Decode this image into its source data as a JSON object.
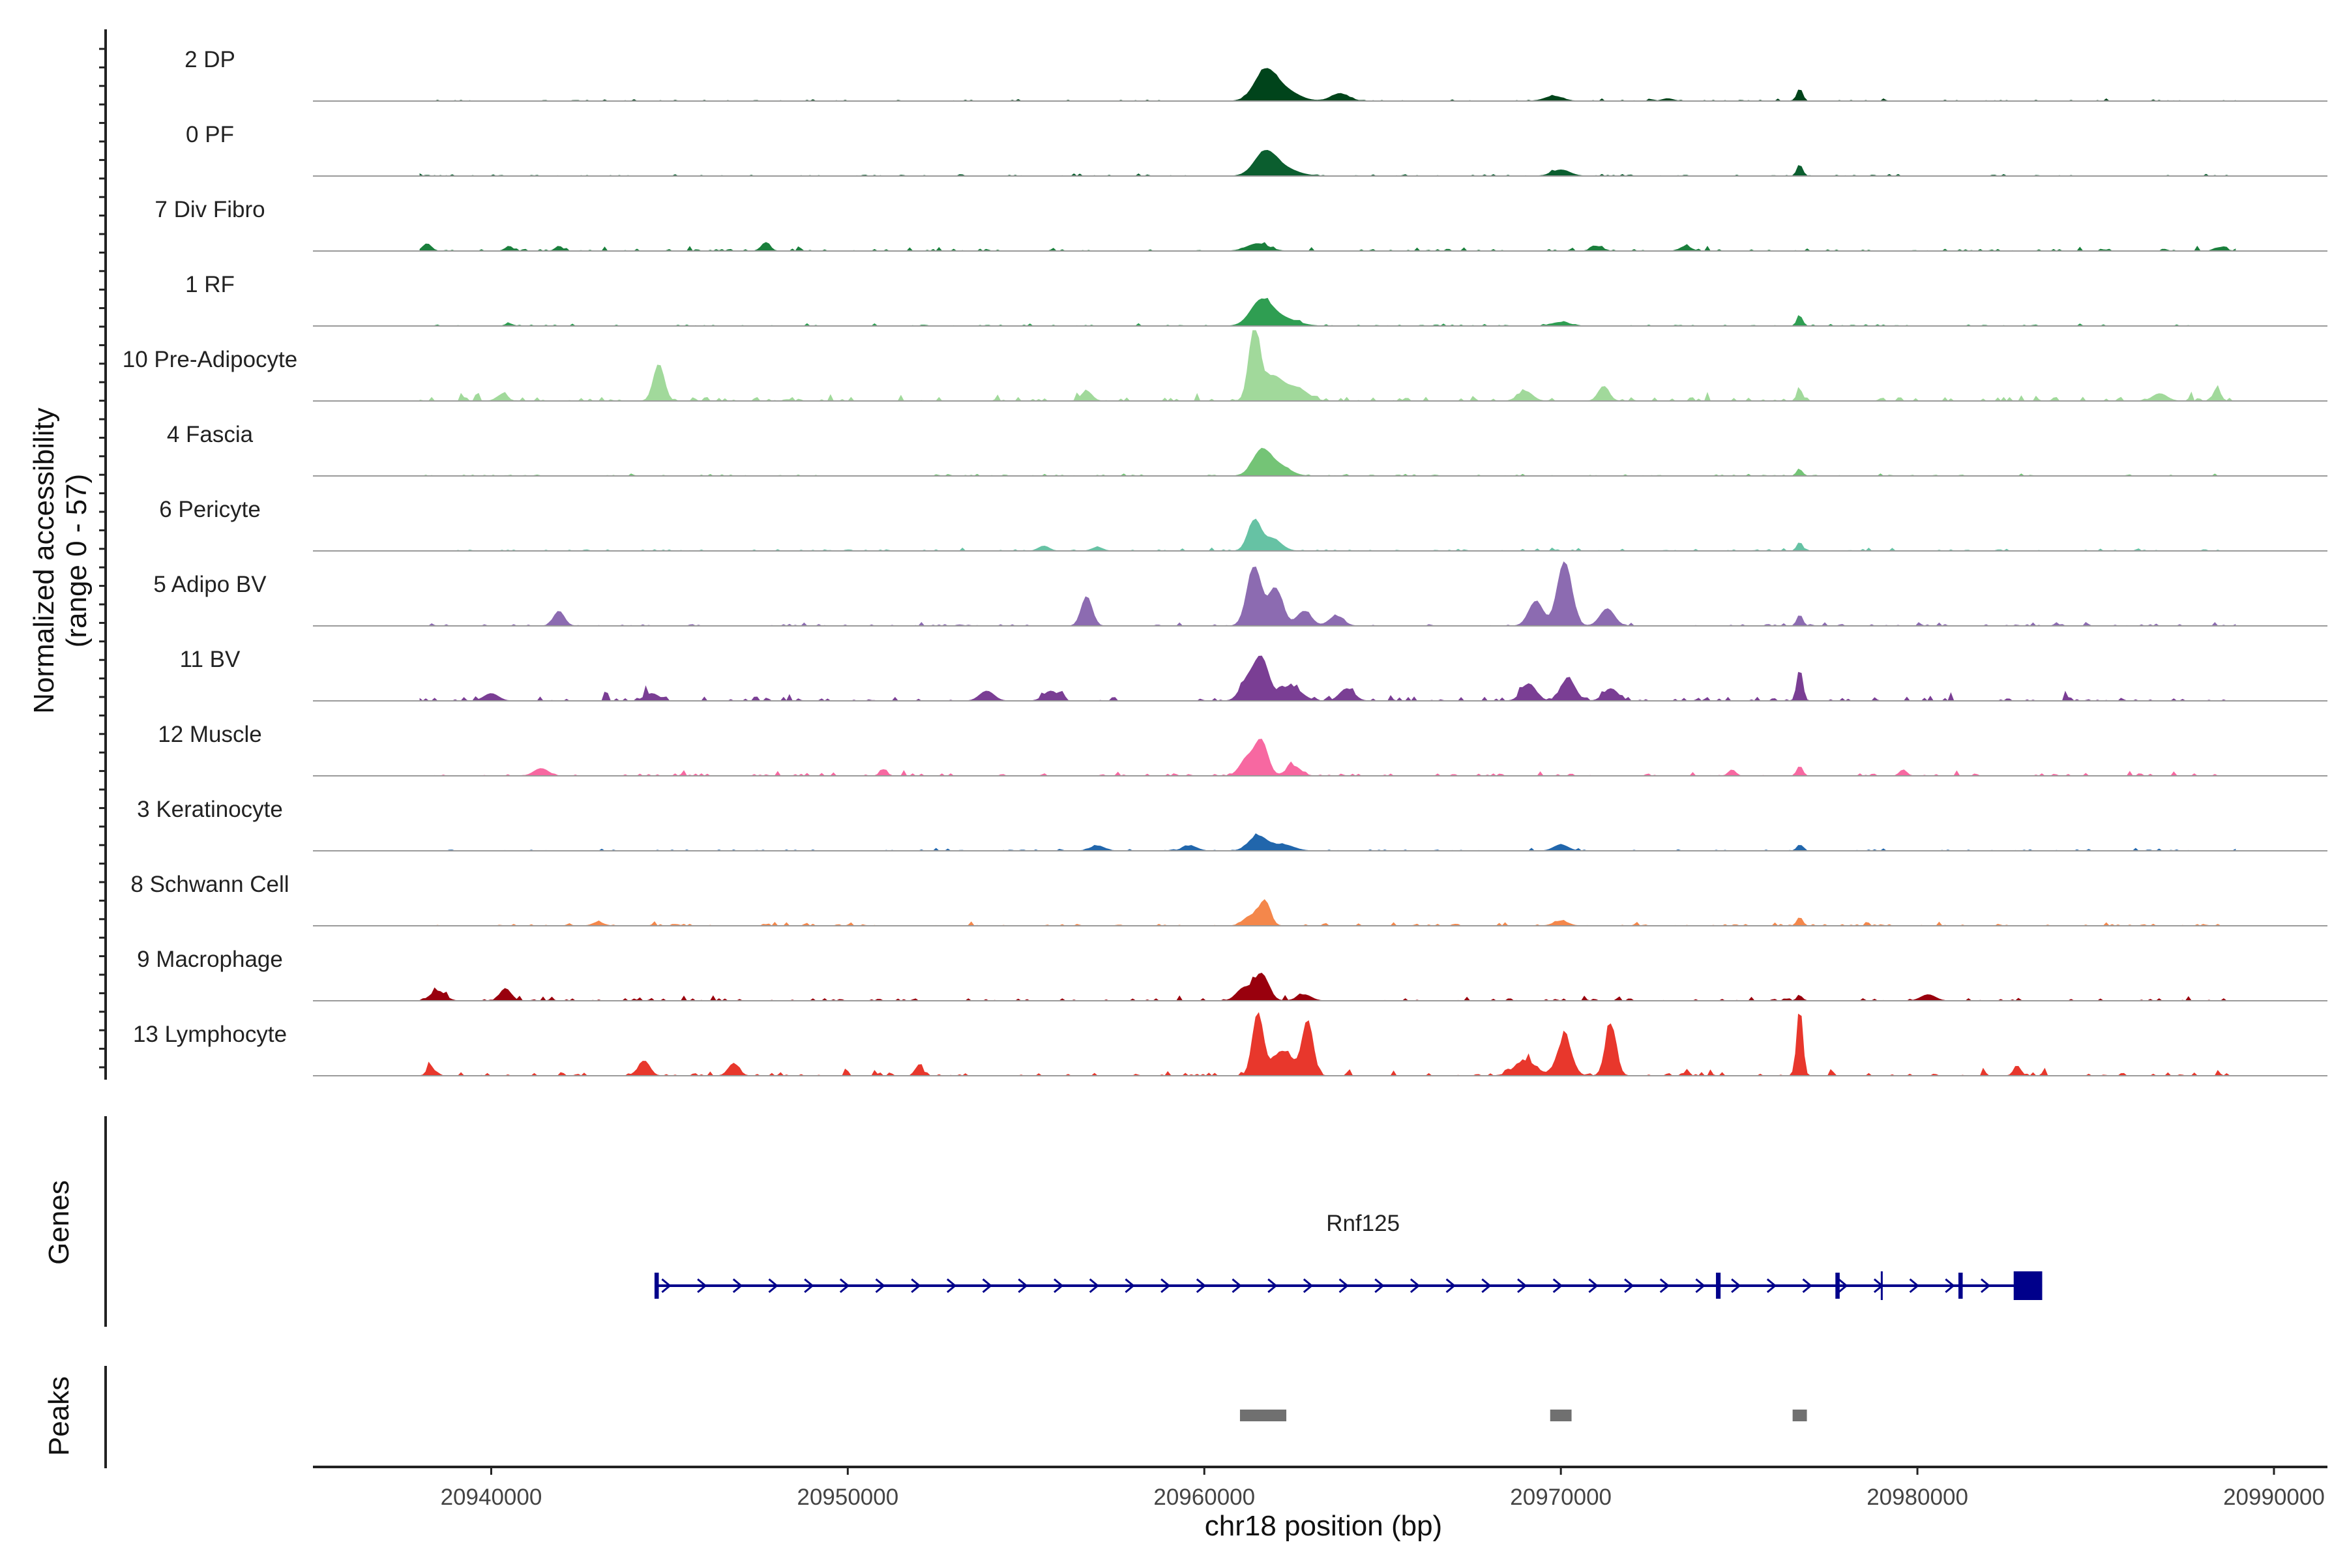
{
  "chart_data": {
    "type": "area",
    "title": "",
    "chromosome": "chr18",
    "xlabel": "chr18 position (bp)",
    "ylabel_line1": "Normalized accessibility",
    "ylabel_line2": "(range 0 - 57)",
    "ylim": [
      0,
      57
    ],
    "xlim": [
      20935000,
      20991500
    ],
    "x_ticks": [
      20940000,
      20950000,
      20960000,
      20970000,
      20980000,
      20990000
    ],
    "x_tick_labels": [
      "20940000",
      "20950000",
      "20960000",
      "20970000",
      "20980000",
      "20990000"
    ],
    "panel_labels": {
      "genes": "Genes",
      "peaks": "Peaks"
    },
    "tracks": [
      {
        "name": "2 DP",
        "color": "#00441b",
        "noise": 0.8,
        "peaks": [
          [
            20961700,
            22,
            300
          ],
          [
            20962200,
            9,
            400
          ],
          [
            20963800,
            6,
            250
          ],
          [
            20969800,
            4,
            250
          ],
          [
            20976700,
            10,
            80
          ],
          [
            20973000,
            2,
            150
          ]
        ]
      },
      {
        "name": "0 PF",
        "color": "#0b5e2f",
        "noise": 0.8,
        "peaks": [
          [
            20961700,
            18,
            300
          ],
          [
            20962200,
            6,
            400
          ],
          [
            20970000,
            5,
            250
          ],
          [
            20976700,
            9,
            80
          ]
        ]
      },
      {
        "name": "7 Div Fibro",
        "color": "#1a7f3c",
        "noise": 1.6,
        "peaks": [
          [
            20938200,
            6,
            120
          ],
          [
            20947700,
            7,
            120
          ],
          [
            20961500,
            6,
            300
          ],
          [
            20940500,
            4,
            100
          ],
          [
            20941900,
            4,
            100
          ],
          [
            20971000,
            4,
            150
          ],
          [
            20973500,
            4,
            150
          ],
          [
            20988500,
            3,
            150
          ]
        ]
      },
      {
        "name": "1 RF",
        "color": "#2f9e52",
        "noise": 0.9,
        "peaks": [
          [
            20961600,
            20,
            300
          ],
          [
            20962200,
            6,
            400
          ],
          [
            20970000,
            3,
            250
          ],
          [
            20976700,
            8,
            80
          ],
          [
            20940500,
            2,
            100
          ]
        ]
      },
      {
        "name": "10 Pre-Adipocyte",
        "color": "#a1d99b",
        "noise": 3.0,
        "peaks": [
          [
            20961400,
            56,
            150
          ],
          [
            20961900,
            20,
            300
          ],
          [
            20962600,
            10,
            300
          ],
          [
            20944700,
            30,
            150
          ],
          [
            20956700,
            8,
            150
          ],
          [
            20937600,
            6,
            200
          ],
          [
            20940300,
            5,
            150
          ],
          [
            20971200,
            12,
            150
          ],
          [
            20976700,
            9,
            80
          ],
          [
            20988400,
            10,
            100
          ],
          [
            20969000,
            8,
            200
          ],
          [
            20986800,
            6,
            200
          ]
        ]
      },
      {
        "name": "4 Fascia",
        "color": "#74c476",
        "noise": 0.8,
        "peaks": [
          [
            20961600,
            20,
            250
          ],
          [
            20962100,
            8,
            300
          ],
          [
            20976700,
            5,
            80
          ]
        ]
      },
      {
        "name": "6 Pericyte",
        "color": "#66c2a4",
        "noise": 1.0,
        "peaks": [
          [
            20961400,
            24,
            180
          ],
          [
            20961900,
            10,
            250
          ],
          [
            20976700,
            7,
            80
          ],
          [
            20955500,
            4,
            150
          ],
          [
            20957000,
            3,
            150
          ]
        ]
      },
      {
        "name": "5 Adipo BV",
        "color": "#8c6bb1",
        "noise": 1.2,
        "peaks": [
          [
            20961400,
            48,
            200
          ],
          [
            20962000,
            30,
            200
          ],
          [
            20962800,
            12,
            200
          ],
          [
            20963700,
            8,
            200
          ],
          [
            20970100,
            52,
            200
          ],
          [
            20969300,
            20,
            200
          ],
          [
            20971300,
            14,
            200
          ],
          [
            20956700,
            24,
            150
          ],
          [
            20941900,
            12,
            150
          ],
          [
            20976700,
            9,
            80
          ]
        ]
      },
      {
        "name": "11 BV",
        "color": "#7a3e94",
        "noise": 3.2,
        "peaks": [
          [
            20961600,
            34,
            200
          ],
          [
            20961200,
            16,
            200
          ],
          [
            20962400,
            12,
            300
          ],
          [
            20964000,
            10,
            200
          ],
          [
            20970200,
            18,
            200
          ],
          [
            20969100,
            14,
            200
          ],
          [
            20971400,
            10,
            200
          ],
          [
            20976700,
            26,
            80
          ],
          [
            20940000,
            6,
            200
          ],
          [
            20944500,
            6,
            200
          ],
          [
            20953900,
            8,
            200
          ],
          [
            20955700,
            8,
            200
          ]
        ]
      },
      {
        "name": "12 Muscle",
        "color": "#f768a1",
        "noise": 1.8,
        "peaks": [
          [
            20961600,
            28,
            180
          ],
          [
            20961200,
            14,
            200
          ],
          [
            20962500,
            8,
            200
          ],
          [
            20941400,
            6,
            200
          ],
          [
            20951000,
            5,
            100
          ],
          [
            20976700,
            8,
            80
          ],
          [
            20974800,
            5,
            100
          ],
          [
            20979600,
            5,
            100
          ]
        ]
      },
      {
        "name": "3 Keratinocyte",
        "color": "#2166ac",
        "noise": 0.9,
        "peaks": [
          [
            20961500,
            12,
            250
          ],
          [
            20962200,
            5,
            300
          ],
          [
            20957000,
            4,
            200
          ],
          [
            20959600,
            4,
            200
          ],
          [
            20970000,
            5,
            200
          ],
          [
            20976700,
            5,
            80
          ]
        ]
      },
      {
        "name": "8 Schwann Cell",
        "color": "#f4874b",
        "noise": 1.4,
        "peaks": [
          [
            20961700,
            20,
            150
          ],
          [
            20961300,
            8,
            200
          ],
          [
            20976700,
            7,
            80
          ],
          [
            20970000,
            4,
            200
          ],
          [
            20943000,
            3,
            150
          ]
        ]
      },
      {
        "name": "9 Macrophage",
        "color": "#99000d",
        "noise": 1.8,
        "peaks": [
          [
            20961600,
            22,
            200
          ],
          [
            20961100,
            10,
            200
          ],
          [
            20938500,
            8,
            200
          ],
          [
            20940400,
            10,
            150
          ],
          [
            20962800,
            5,
            200
          ],
          [
            20980300,
            5,
            200
          ],
          [
            20976700,
            4,
            80
          ]
        ]
      },
      {
        "name": "13 Lymphocyte",
        "color": "#e8372c",
        "noise": 2.6,
        "peaks": [
          [
            20976700,
            56,
            80
          ],
          [
            20961500,
            50,
            150
          ],
          [
            20962900,
            44,
            150
          ],
          [
            20962200,
            20,
            300
          ],
          [
            20971400,
            42,
            150
          ],
          [
            20970100,
            30,
            200
          ],
          [
            20969000,
            12,
            300
          ],
          [
            20938300,
            8,
            100
          ],
          [
            20944300,
            12,
            150
          ],
          [
            20946800,
            10,
            150
          ],
          [
            20952000,
            9,
            100
          ],
          [
            20982800,
            8,
            100
          ]
        ]
      }
    ],
    "gene": {
      "name": "Rnf125",
      "strand": "+",
      "color": "#00008b",
      "start": 20944600,
      "end": 20983500,
      "exons": [
        [
          20944580,
          20944700
        ],
        [
          20974350,
          20974480
        ],
        [
          20977700,
          20977820
        ],
        [
          20981150,
          20981270
        ],
        [
          20982700,
          20983500
        ]
      ],
      "marks": [
        20979000
      ]
    },
    "peak_regions": [
      [
        20961000,
        20962300
      ],
      [
        20969700,
        20970300
      ],
      [
        20976500,
        20976900
      ]
    ],
    "peak_color": "#707070"
  }
}
